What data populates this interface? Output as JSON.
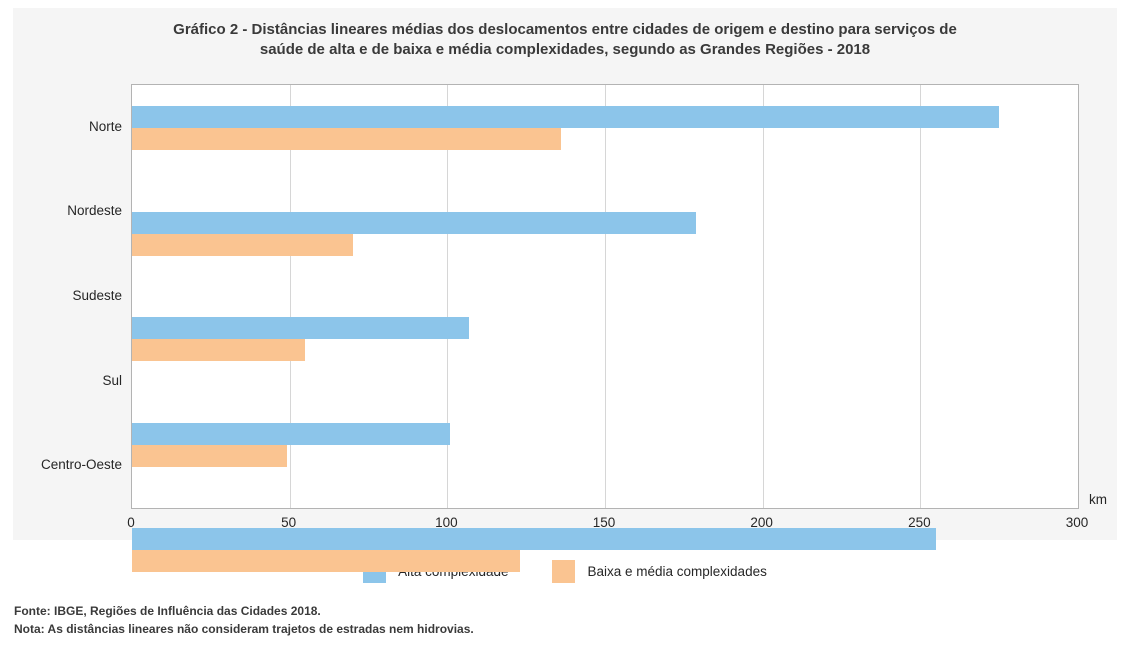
{
  "title": {
    "line1": "Gráfico 2 - Distâncias lineares médias dos deslocamentos entre cidades de origem e destino para serviços de",
    "line2": "saúde de alta e de baixa e média complexidades, segundo as Grandes Regiões - 2018"
  },
  "chart_data": {
    "type": "bar",
    "orientation": "horizontal",
    "title": "Gráfico 2 - Distâncias lineares médias dos deslocamentos entre cidades de origem e destino para serviços de saúde de alta e de baixa e média complexidades, segundo as Grandes Regiões - 2018",
    "categories": [
      "Norte",
      "Nordeste",
      "Sudeste",
      "Sul",
      "Centro-Oeste"
    ],
    "series": [
      {
        "name": "Alta complexidade",
        "color": "#8cc5ea",
        "values": [
          275,
          179,
          107,
          101,
          255
        ]
      },
      {
        "name": "Baixa e média complexidades",
        "color": "#fac491",
        "values": [
          136,
          70,
          55,
          49,
          123
        ]
      }
    ],
    "xlim": [
      0,
      300
    ],
    "xticks": [
      0,
      50,
      100,
      150,
      200,
      250,
      300
    ],
    "unit": "km",
    "grid": true,
    "legend_position": "bottom"
  },
  "footer": {
    "fonte": "Fonte: IBGE, Regiões de Influência das Cidades 2018.",
    "nota": "Nota: As distâncias lineares não consideram trajetos de estradas nem hidrovias."
  },
  "colors": {
    "panel_bg": "#f5f5f5",
    "plot_border": "#b3b3b3",
    "gridline": "#d6d6d6",
    "alta": "#8cc5ea",
    "baixa": "#fac491",
    "text": "#3a3a3a"
  }
}
